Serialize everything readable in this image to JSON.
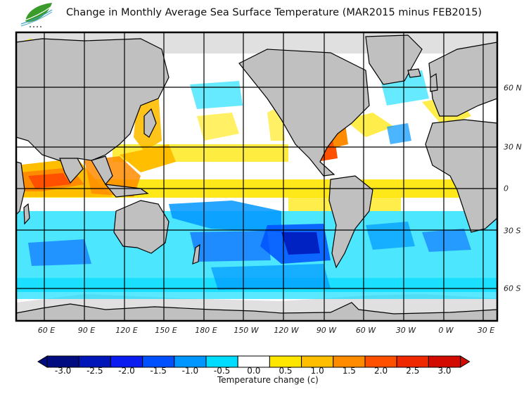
{
  "header": {
    "title": "Change in Monthly Average Sea Surface Temperature (MAR2015 minus FEB2015)",
    "logo_icon": "leaf-waves-logo-icon"
  },
  "map": {
    "lon_labels": [
      "60 E",
      "90 E",
      "120 E",
      "150 E",
      "180 E",
      "150 W",
      "120 W",
      "90 W",
      "60 W",
      "30 W",
      "0 W",
      "30 E"
    ],
    "lat_labels": [
      "60 N",
      "30 N",
      "0",
      "30 S",
      "60 S"
    ],
    "land_color": "#c0c0c0",
    "ice_color": "#e0e0e0"
  },
  "colorbar": {
    "title": "Temperature change  (c)",
    "tick_labels": [
      "-3.0",
      "-2.5",
      "-2.0",
      "-1.5",
      "-1.0",
      "-0.5",
      "0.0",
      "0.5",
      "1.0",
      "1.5",
      "2.0",
      "2.5",
      "3.0"
    ],
    "colors": [
      "#000c80",
      "#0016b8",
      "#0a1cf0",
      "#0050ff",
      "#0096ff",
      "#00dcff",
      "#ffffff",
      "#ffe600",
      "#ffbe00",
      "#ff8c00",
      "#ff5000",
      "#f02800",
      "#d20a00"
    ],
    "under_color": "#000c80",
    "over_color": "#d20a00"
  }
}
